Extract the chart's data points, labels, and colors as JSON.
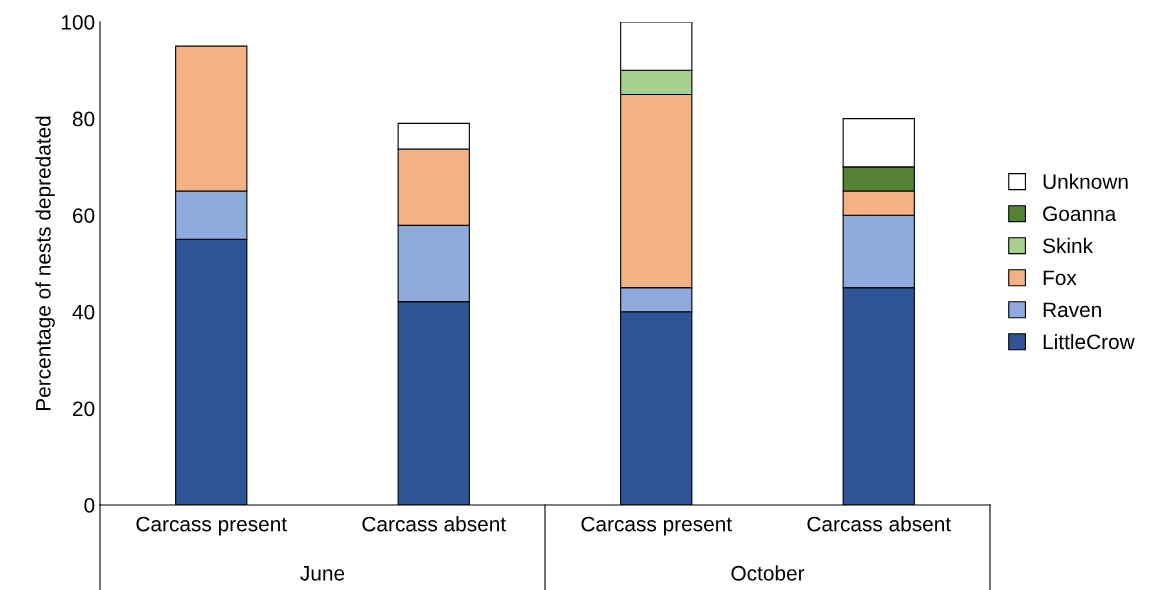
{
  "chart_data": {
    "type": "bar",
    "stacked": true,
    "ylabel": "Percentage of nests depredated",
    "categories": [
      "Carcass present",
      "Carcass absent",
      "Carcass present",
      "Carcass absent"
    ],
    "annotations": [
      "June",
      "October"
    ],
    "series": [
      {
        "name": "LittleCrow",
        "color": "#2f5597",
        "values": [
          55,
          42.1,
          40,
          45
        ]
      },
      {
        "name": "Raven",
        "color": "#8faadc",
        "values": [
          10,
          15.8,
          5,
          15
        ]
      },
      {
        "name": "Fox",
        "color": "#f4b183",
        "values": [
          30,
          15.8,
          40,
          5
        ]
      },
      {
        "name": "Skink",
        "color": "#a9d18e",
        "values": [
          0,
          0,
          5,
          0
        ]
      },
      {
        "name": "Goanna",
        "color": "#548235",
        "values": [
          0,
          0,
          0,
          5
        ]
      },
      {
        "name": "Unknown",
        "color": "#ffffff",
        "values": [
          0,
          5.3,
          10,
          10
        ]
      }
    ],
    "ylim": [
      0,
      100
    ],
    "yticks": [
      0,
      20,
      40,
      60,
      80,
      100
    ],
    "grid": false,
    "legend": "right"
  }
}
